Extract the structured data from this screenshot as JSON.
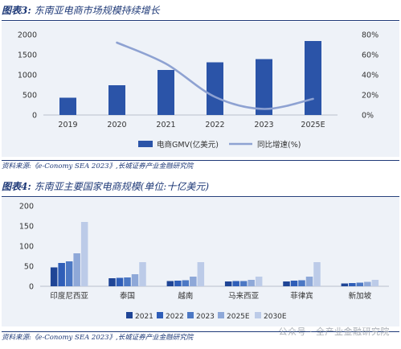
{
  "figure1": {
    "label": "图表3:",
    "title": "东南亚电商市场规模持续增长",
    "source": "资料来源:《e-Conomy SEA 2023》,长城证券产业金融研究院"
  },
  "figure2": {
    "label": "图表4:",
    "title": "东南亚主要国家电商规模(单位:十亿美元)",
    "source": "资料来源:《e-Conomy SEA 2023》,长城证券产业金融研究院"
  },
  "watermark": "公众号 · 全产业金融研究院",
  "chart_data": [
    {
      "type": "bar",
      "categories": [
        "2019",
        "2020",
        "2021",
        "2022",
        "2023",
        "2025E"
      ],
      "series": [
        {
          "name": "电商GMV(亿美元)",
          "type": "bar",
          "axis": "left",
          "values": [
            430,
            740,
            1120,
            1310,
            1390,
            1840
          ]
        },
        {
          "name": "同比增速(%)",
          "type": "line",
          "axis": "right",
          "values": [
            null,
            72,
            51,
            18,
            6,
            16
          ]
        }
      ],
      "ylim": [
        0,
        2000
      ],
      "yticks": [
        "0",
        "500",
        "1000",
        "1500",
        "2000"
      ],
      "y2lim": [
        0,
        80
      ],
      "y2ticks": [
        "0%",
        "20%",
        "40%",
        "60%",
        "80%"
      ],
      "legend": "bottom",
      "colors": {
        "bar": "#2b54a8",
        "line": "#8ea2d2"
      }
    },
    {
      "type": "bar",
      "categories": [
        "印度尼西亚",
        "泰国",
        "越南",
        "马来西亚",
        "菲律宾",
        "新加坡"
      ],
      "series": [
        {
          "name": "2021",
          "values": [
            47,
            20,
            13,
            12,
            12,
            7
          ]
        },
        {
          "name": "2022",
          "values": [
            58,
            21,
            14,
            13,
            14,
            8
          ]
        },
        {
          "name": "2023",
          "values": [
            62,
            22,
            15,
            13,
            15,
            9
          ]
        },
        {
          "name": "2025E",
          "values": [
            82,
            30,
            24,
            16,
            24,
            11
          ]
        },
        {
          "name": "2030E",
          "values": [
            160,
            60,
            60,
            24,
            60,
            16
          ]
        }
      ],
      "ylim": [
        0,
        200
      ],
      "yticks": [
        "0",
        "50",
        "100",
        "150",
        "200"
      ],
      "legend": "bottom",
      "colors": [
        "#1f4596",
        "#2f5eb8",
        "#4c78c4",
        "#8ea8d8",
        "#bccbe8"
      ]
    }
  ]
}
